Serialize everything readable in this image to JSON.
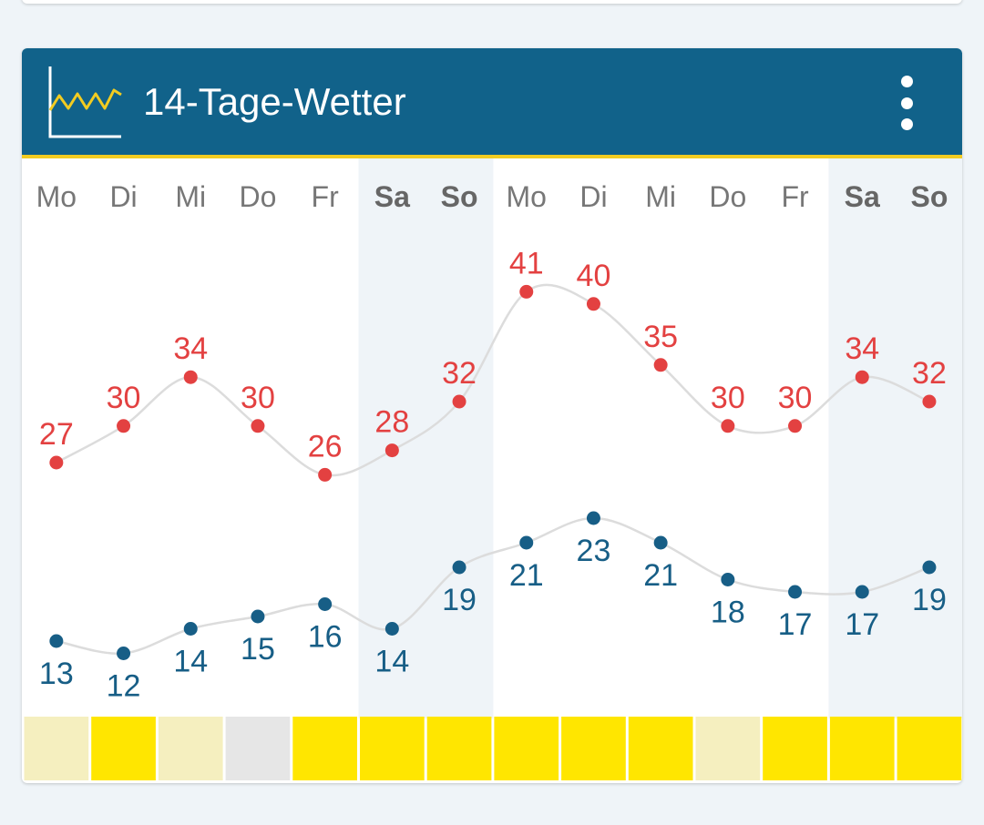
{
  "header": {
    "title": "14-Tage-Wetter",
    "icon": "line-chart-icon",
    "menu_icon": "more-vertical-icon"
  },
  "colors": {
    "header_bg": "#11628a",
    "accent_line": "#f2cc21",
    "high_temp": "#e34141",
    "low_temp": "#175e86",
    "weekend_bg": "#eff4f8",
    "sun_full": "#ffe600",
    "sun_partial": "#f5efbf",
    "sun_none": "#e6e6e6"
  },
  "chart_data": {
    "type": "line",
    "categories": [
      "Mo",
      "Di",
      "Mi",
      "Do",
      "Fr",
      "Sa",
      "So",
      "Mo",
      "Di",
      "Mi",
      "Do",
      "Fr",
      "Sa",
      "So"
    ],
    "weekend": [
      false,
      false,
      false,
      false,
      false,
      true,
      true,
      false,
      false,
      false,
      false,
      false,
      true,
      true
    ],
    "series": [
      {
        "values": [
          27,
          30,
          34,
          30,
          26,
          28,
          32,
          41,
          40,
          35,
          30,
          30,
          34,
          32
        ],
        "color": "#e34141"
      },
      {
        "values": [
          13,
          12,
          14,
          15,
          16,
          14,
          19,
          21,
          23,
          21,
          18,
          17,
          17,
          19
        ],
        "color": "#175e86"
      }
    ],
    "sunshine_levels": [
      "partial",
      "full",
      "partial",
      "none",
      "full",
      "full",
      "full",
      "full",
      "full",
      "full",
      "partial",
      "full",
      "full",
      "full"
    ],
    "grid": false
  }
}
